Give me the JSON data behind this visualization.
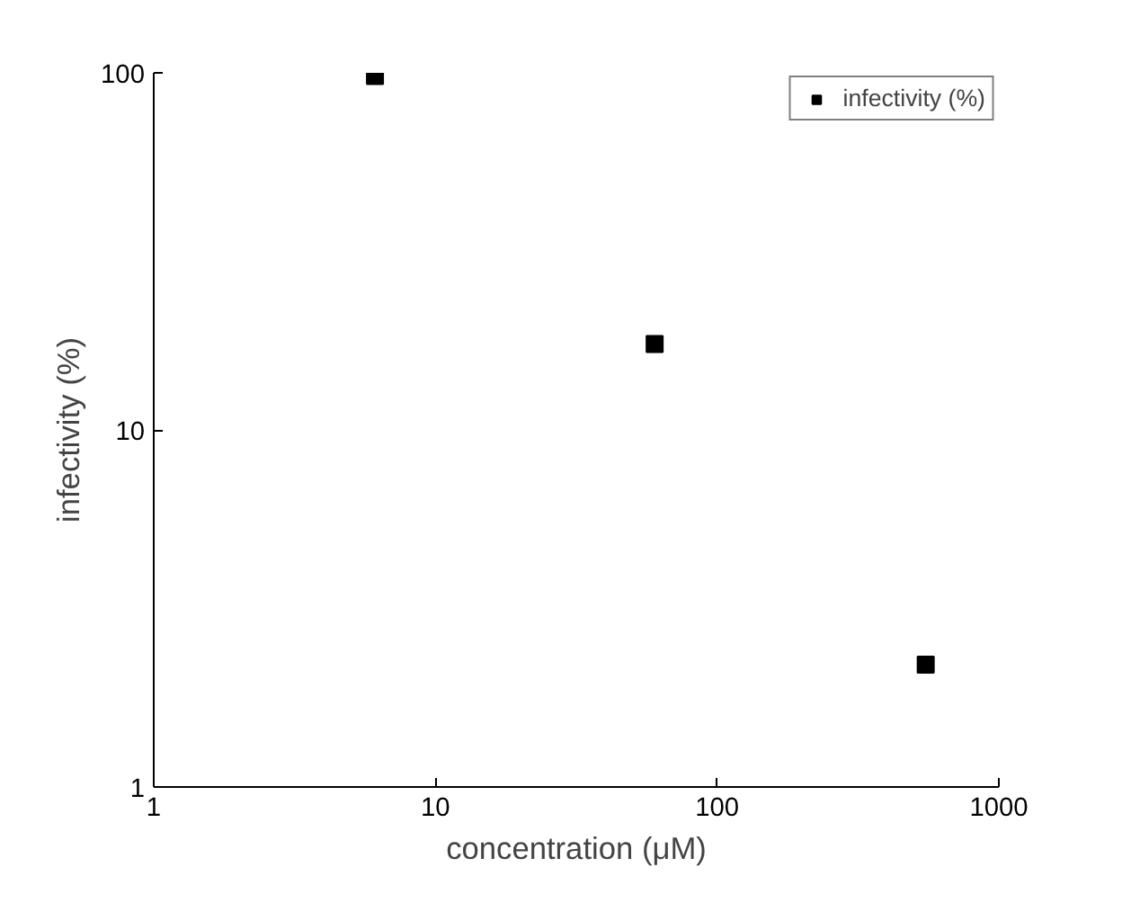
{
  "chart_data": {
    "type": "scatter",
    "xlabel": "concentration (μM)",
    "ylabel": "infectivity (%)",
    "x": [
      6.1,
      60,
      550
    ],
    "series": [
      {
        "name": "infectivity (%)",
        "color": "#000000",
        "values": [
          98,
          17.4,
          2.2
        ]
      }
    ],
    "log": "xy",
    "xlim": [
      1,
      1000
    ],
    "ylim": [
      1,
      100
    ],
    "xticks": [
      1,
      10,
      100,
      1000
    ],
    "yticks": [
      1,
      10,
      100
    ],
    "marker": "square",
    "legend": "top right",
    "grid": false
  }
}
